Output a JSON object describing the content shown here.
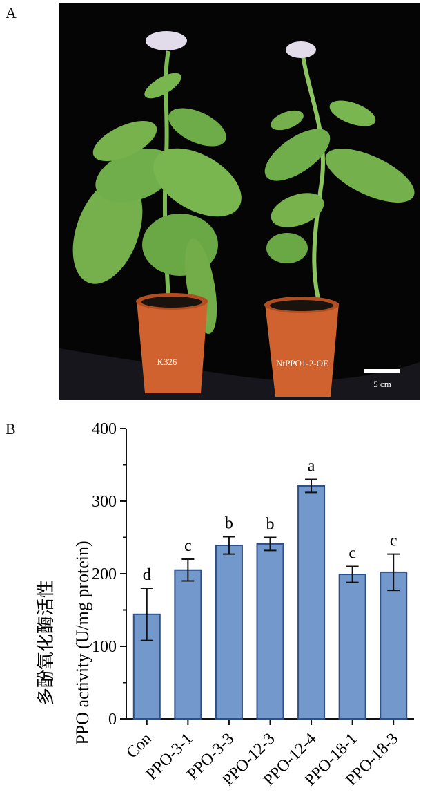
{
  "panel_a": {
    "label": "A",
    "plant_left_label": "K326",
    "plant_right_label": "NtPPO1-2-OE",
    "scale_bar_label": "5 cm"
  },
  "panel_b": {
    "label": "B"
  },
  "colors": {
    "bar_fill": "#7399cc",
    "bar_stroke": "#2f4f86",
    "leaf": "#6fae4a",
    "pot": "#d0622f",
    "background_photo": "#050505"
  },
  "chart_data": {
    "type": "bar",
    "categories": [
      "Con",
      "PPO-3-1",
      "PPO-3-3",
      "PPO-12-3",
      "PPO-12-4",
      "PPO-18-1",
      "PPO-18-3"
    ],
    "values": [
      144,
      205,
      239,
      241,
      321,
      199,
      202
    ],
    "errors": [
      36,
      15,
      12,
      9,
      9,
      11,
      25
    ],
    "significance": [
      "d",
      "c",
      "b",
      "b",
      "a",
      "c",
      "c"
    ],
    "ylabel_cn": "多酚氧化酶活性",
    "ylabel_en": "PPO activity (U/mg protein)",
    "ylim": [
      0,
      400
    ],
    "yticks": [
      "0",
      "100",
      "200",
      "300",
      "400"
    ],
    "grid": false
  }
}
